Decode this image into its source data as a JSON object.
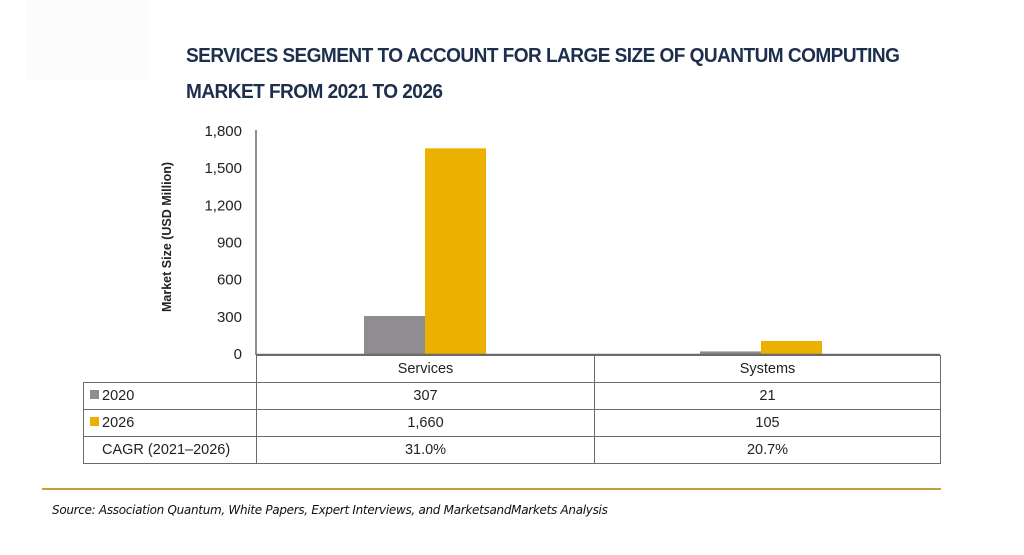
{
  "title_lines": [
    "SERVICES SEGMENT TO ACCOUNT FOR LARGE SIZE OF QUANTUM COMPUTING",
    "MARKET FROM 2021 TO 2026"
  ],
  "colors": {
    "series_2020": "#8f8d91",
    "series_2026": "#ebb000",
    "axis": "#6b6b6b",
    "title": "#1d2f4c",
    "rule": "#c4a135"
  },
  "chart_data": {
    "type": "bar",
    "title": "SERVICES SEGMENT TO ACCOUNT FOR LARGE SIZE OF QUANTUM COMPUTING MARKET FROM 2021 TO 2026",
    "categories": [
      "Services",
      "Systems"
    ],
    "series": [
      {
        "name": "2020",
        "values": [
          307,
          21
        ]
      },
      {
        "name": "2026",
        "values": [
          1660,
          105
        ]
      }
    ],
    "xlabel": "",
    "ylabel": "Market Size (USD Million)",
    "ylim": [
      0,
      1800
    ],
    "yticks": [
      0,
      300,
      600,
      900,
      1200,
      1500,
      1800
    ],
    "ytick_labels": [
      "0",
      "300",
      "600",
      "900",
      "1,200",
      "1,500",
      "1,800"
    ],
    "grid": false,
    "legend": "in data table (left column)",
    "data_table": {
      "rows": [
        {
          "label": "2020",
          "values": [
            "307",
            "21"
          ]
        },
        {
          "label": "2026",
          "values": [
            "1,660",
            "105"
          ]
        },
        {
          "label": "CAGR (2021–2026)",
          "values": [
            "31.0%",
            "20.7%"
          ]
        }
      ]
    }
  },
  "source": "Source: Association Quantum, White Papers, Expert Interviews, and MarketsandMarkets Analysis"
}
